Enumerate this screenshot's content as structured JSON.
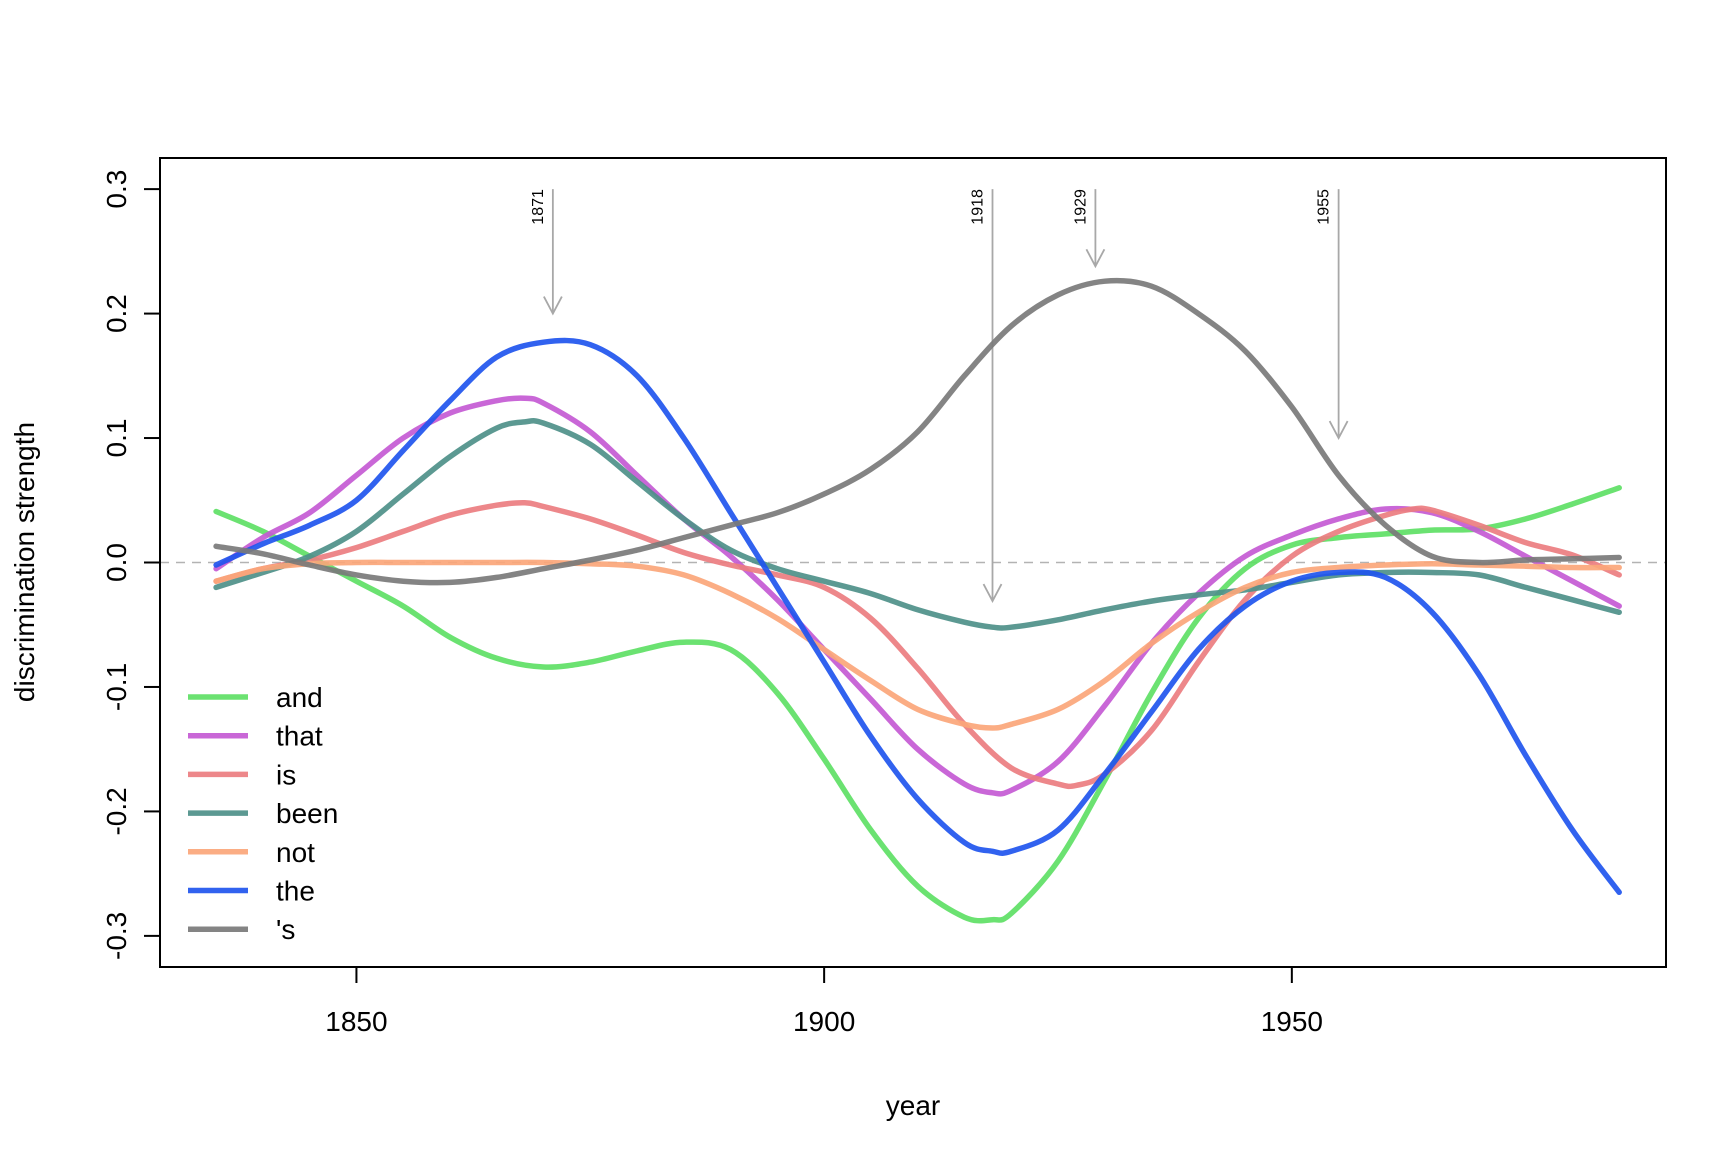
{
  "chart_data": {
    "type": "line",
    "title": "",
    "xlabel": "year",
    "ylabel": "discrimination strength",
    "xlim": [
      1829,
      1990
    ],
    "ylim": [
      -0.325,
      0.325
    ],
    "xticks": [
      1850,
      1900,
      1950
    ],
    "yticks": [
      -0.3,
      -0.2,
      -0.1,
      0.0,
      0.1,
      0.2,
      0.3
    ],
    "ytick_labels": [
      "-0.3",
      "-0.2",
      "-0.1",
      "0.0",
      "0.1",
      "0.2",
      "0.3"
    ],
    "reference_line": {
      "y": 0,
      "style": "dashed",
      "color": "#b3b3b3"
    },
    "legend_position": "bottom-left",
    "series": [
      {
        "name": "and",
        "color": "#5ee065",
        "x": [
          1835,
          1840,
          1845,
          1850,
          1855,
          1860,
          1865,
          1870,
          1875,
          1880,
          1885,
          1890,
          1895,
          1900,
          1905,
          1910,
          1915,
          1918,
          1920,
          1925,
          1930,
          1935,
          1940,
          1945,
          1950,
          1955,
          1960,
          1965,
          1970,
          1975,
          1980,
          1985
        ],
        "values": [
          0.041,
          0.025,
          0.005,
          -0.015,
          -0.035,
          -0.06,
          -0.077,
          -0.084,
          -0.08,
          -0.071,
          -0.064,
          -0.07,
          -0.105,
          -0.158,
          -0.215,
          -0.26,
          -0.285,
          -0.287,
          -0.282,
          -0.24,
          -0.175,
          -0.105,
          -0.045,
          -0.005,
          0.014,
          0.02,
          0.023,
          0.026,
          0.027,
          0.035,
          0.047,
          0.06
        ]
      },
      {
        "name": "that",
        "color": "#c45ad4",
        "x": [
          1835,
          1840,
          1845,
          1850,
          1855,
          1860,
          1865,
          1868,
          1870,
          1875,
          1880,
          1885,
          1890,
          1895,
          1900,
          1905,
          1910,
          1915,
          1918,
          1920,
          1925,
          1930,
          1935,
          1940,
          1945,
          1950,
          1955,
          1960,
          1965,
          1970,
          1975,
          1980,
          1985
        ],
        "values": [
          -0.005,
          0.02,
          0.04,
          0.07,
          0.1,
          0.12,
          0.13,
          0.132,
          0.128,
          0.105,
          0.07,
          0.035,
          0.005,
          -0.03,
          -0.07,
          -0.11,
          -0.15,
          -0.178,
          -0.185,
          -0.183,
          -0.16,
          -0.115,
          -0.065,
          -0.025,
          0.005,
          0.022,
          0.035,
          0.043,
          0.04,
          0.025,
          0.005,
          -0.015,
          -0.035
        ]
      },
      {
        "name": "is",
        "color": "#ec7d80",
        "x": [
          1835,
          1840,
          1845,
          1850,
          1855,
          1860,
          1865,
          1868,
          1870,
          1875,
          1880,
          1885,
          1890,
          1895,
          1900,
          1905,
          1910,
          1915,
          1920,
          1925,
          1927,
          1930,
          1935,
          1940,
          1945,
          1950,
          1955,
          1960,
          1963,
          1965,
          1970,
          1975,
          1980,
          1985
        ],
        "values": [
          -0.015,
          -0.005,
          0.002,
          0.012,
          0.025,
          0.038,
          0.046,
          0.048,
          0.045,
          0.035,
          0.022,
          0.008,
          -0.002,
          -0.01,
          -0.02,
          -0.045,
          -0.085,
          -0.13,
          -0.165,
          -0.178,
          -0.179,
          -0.17,
          -0.135,
          -0.08,
          -0.03,
          0.005,
          0.025,
          0.038,
          0.043,
          0.042,
          0.03,
          0.016,
          0.006,
          -0.01
        ]
      },
      {
        "name": "been",
        "color": "#4e9089",
        "x": [
          1835,
          1840,
          1845,
          1850,
          1855,
          1860,
          1865,
          1868,
          1870,
          1875,
          1880,
          1885,
          1890,
          1895,
          1900,
          1905,
          1910,
          1915,
          1918,
          1920,
          1925,
          1930,
          1935,
          1940,
          1945,
          1950,
          1955,
          1960,
          1965,
          1970,
          1975,
          1980,
          1985
        ],
        "values": [
          -0.02,
          -0.008,
          0.005,
          0.025,
          0.055,
          0.085,
          0.108,
          0.113,
          0.112,
          0.095,
          0.065,
          0.035,
          0.01,
          -0.005,
          -0.015,
          -0.025,
          -0.038,
          -0.048,
          -0.052,
          -0.052,
          -0.046,
          -0.038,
          -0.031,
          -0.026,
          -0.022,
          -0.016,
          -0.01,
          -0.008,
          -0.008,
          -0.01,
          -0.02,
          -0.03,
          -0.04
        ]
      },
      {
        "name": "not",
        "color": "#fba67a",
        "x": [
          1835,
          1840,
          1845,
          1850,
          1855,
          1860,
          1865,
          1870,
          1875,
          1880,
          1885,
          1890,
          1895,
          1900,
          1905,
          1910,
          1915,
          1918,
          1920,
          1925,
          1930,
          1935,
          1940,
          1945,
          1950,
          1955,
          1960,
          1965,
          1970,
          1975,
          1980,
          1985
        ],
        "values": [
          -0.015,
          -0.005,
          -0.001,
          0.0,
          0.0,
          0.0,
          0.0,
          0.0,
          -0.001,
          -0.003,
          -0.01,
          -0.025,
          -0.045,
          -0.07,
          -0.095,
          -0.118,
          -0.13,
          -0.133,
          -0.13,
          -0.118,
          -0.095,
          -0.065,
          -0.04,
          -0.02,
          -0.008,
          -0.004,
          -0.002,
          -0.001,
          -0.002,
          -0.003,
          -0.004,
          -0.004
        ]
      },
      {
        "name": "the",
        "color": "#2055ee",
        "x": [
          1835,
          1840,
          1845,
          1850,
          1855,
          1860,
          1865,
          1870,
          1875,
          1880,
          1885,
          1890,
          1895,
          1900,
          1905,
          1910,
          1915,
          1918,
          1920,
          1925,
          1930,
          1935,
          1940,
          1945,
          1950,
          1955,
          1960,
          1965,
          1970,
          1975,
          1980,
          1985
        ],
        "values": [
          -0.002,
          0.015,
          0.03,
          0.05,
          0.09,
          0.13,
          0.165,
          0.177,
          0.175,
          0.15,
          0.1,
          0.04,
          -0.02,
          -0.08,
          -0.14,
          -0.19,
          -0.225,
          -0.232,
          -0.232,
          -0.215,
          -0.17,
          -0.12,
          -0.07,
          -0.035,
          -0.015,
          -0.008,
          -0.012,
          -0.04,
          -0.09,
          -0.155,
          -0.215,
          -0.265
        ]
      },
      {
        "name": "'s",
        "color": "#7a7a7a",
        "x": [
          1835,
          1840,
          1845,
          1850,
          1855,
          1860,
          1865,
          1870,
          1875,
          1880,
          1885,
          1890,
          1895,
          1900,
          1905,
          1910,
          1915,
          1920,
          1925,
          1930,
          1935,
          1940,
          1945,
          1950,
          1955,
          1960,
          1965,
          1970,
          1975,
          1980,
          1985
        ],
        "values": [
          0.013,
          0.007,
          -0.002,
          -0.01,
          -0.015,
          -0.016,
          -0.012,
          -0.005,
          0.002,
          0.01,
          0.02,
          0.03,
          0.04,
          0.055,
          0.075,
          0.105,
          0.15,
          0.19,
          0.215,
          0.226,
          0.222,
          0.2,
          0.17,
          0.125,
          0.07,
          0.03,
          0.005,
          0.0,
          0.002,
          0.003,
          0.004
        ]
      }
    ],
    "annotations": [
      {
        "label": "1871",
        "x": 1871,
        "y_top": 0.3,
        "y_tip": 0.2
      },
      {
        "label": "1918",
        "x": 1918,
        "y_top": 0.3,
        "y_tip": -0.031
      },
      {
        "label": "1929",
        "x": 1929,
        "y_top": 0.3,
        "y_tip": 0.238
      },
      {
        "label": "1955",
        "x": 1955,
        "y_top": 0.3,
        "y_tip": 0.1
      }
    ]
  }
}
